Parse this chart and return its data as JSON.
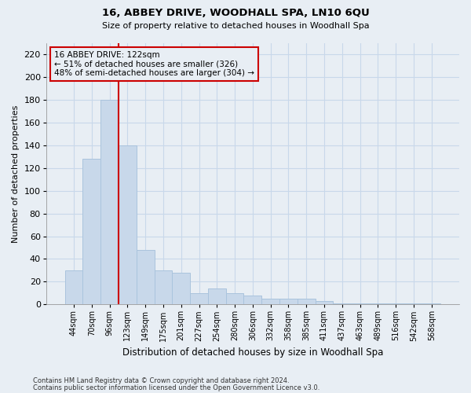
{
  "title": "16, ABBEY DRIVE, WOODHALL SPA, LN10 6QU",
  "subtitle": "Size of property relative to detached houses in Woodhall Spa",
  "xlabel": "Distribution of detached houses by size in Woodhall Spa",
  "ylabel": "Number of detached properties",
  "bar_values": [
    30,
    128,
    180,
    140,
    48,
    30,
    28,
    10,
    14,
    10,
    8,
    5,
    5,
    5,
    3,
    1,
    1,
    1,
    1,
    1,
    1
  ],
  "bar_labels": [
    "44sqm",
    "70sqm",
    "96sqm",
    "123sqm",
    "149sqm",
    "175sqm",
    "201sqm",
    "227sqm",
    "254sqm",
    "280sqm",
    "306sqm",
    "332sqm",
    "358sqm",
    "385sqm",
    "411sqm",
    "437sqm",
    "463sqm",
    "489sqm",
    "516sqm",
    "542sqm",
    "568sqm"
  ],
  "bar_color": "#c8d8ea",
  "bar_edge_color": "#aac4dd",
  "grid_color": "#c8d8ea",
  "annotation_box_color": "#cc0000",
  "red_line_bar_index": 2,
  "annotation_text_line1": "16 ABBEY DRIVE: 122sqm",
  "annotation_text_line2": "← 51% of detached houses are smaller (326)",
  "annotation_text_line3": "48% of semi-detached houses are larger (304) →",
  "ylim": [
    0,
    230
  ],
  "yticks": [
    0,
    20,
    40,
    60,
    80,
    100,
    120,
    140,
    160,
    180,
    200,
    220
  ],
  "footer_line1": "Contains HM Land Registry data © Crown copyright and database right 2024.",
  "footer_line2": "Contains public sector information licensed under the Open Government Licence v3.0.",
  "background_color": "#e8eef4"
}
